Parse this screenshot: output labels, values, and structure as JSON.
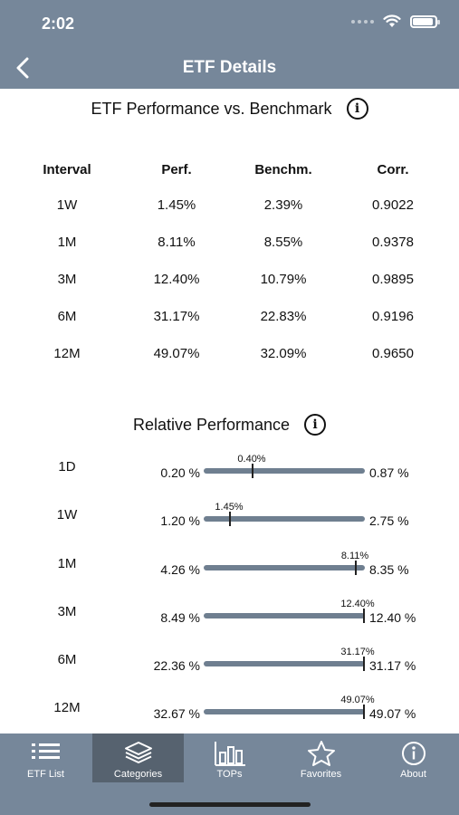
{
  "status_bar": {
    "time": "2:02"
  },
  "nav": {
    "title": "ETF Details"
  },
  "performance": {
    "title": "ETF Performance vs. Benchmark",
    "headers": {
      "interval": "Interval",
      "perf": "Perf.",
      "bench": "Benchm.",
      "corr": "Corr."
    },
    "rows": [
      {
        "interval": "1W",
        "perf": "1.45%",
        "bench": "2.39%",
        "corr": "0.9022"
      },
      {
        "interval": "1M",
        "perf": "8.11%",
        "bench": "8.55%",
        "corr": "0.9378"
      },
      {
        "interval": "3M",
        "perf": "12.40%",
        "bench": "10.79%",
        "corr": "0.9895"
      },
      {
        "interval": "6M",
        "perf": "31.17%",
        "bench": "22.83%",
        "corr": "0.9196"
      },
      {
        "interval": "12M",
        "perf": "49.07%",
        "bench": "32.09%",
        "corr": "0.9650"
      }
    ]
  },
  "relative": {
    "title": "Relative Performance",
    "rows": [
      {
        "interval": "1D",
        "min": "0.20 %",
        "max": "0.87 %",
        "value": "0.40%",
        "fraction": 0.3
      },
      {
        "interval": "1W",
        "min": "1.20 %",
        "max": "2.75 %",
        "value": "1.45%",
        "fraction": 0.16
      },
      {
        "interval": "1M",
        "min": "4.26 %",
        "max": "8.35 %",
        "value": "8.11%",
        "fraction": 0.94
      },
      {
        "interval": "3M",
        "min": "8.49 %",
        "max": "12.40 %",
        "value": "12.40%",
        "fraction": 1.0
      },
      {
        "interval": "6M",
        "min": "22.36 %",
        "max": "31.17 %",
        "value": "31.17%",
        "fraction": 1.0
      },
      {
        "interval": "12M",
        "min": "32.67 %",
        "max": "49.07 %",
        "value": "49.07%",
        "fraction": 1.0
      }
    ]
  },
  "tabbar": {
    "tabs": [
      {
        "label": "ETF List",
        "icon": "list-icon",
        "active": false
      },
      {
        "label": "Categories",
        "icon": "layers-icon",
        "active": true
      },
      {
        "label": "TOPs",
        "icon": "bar-chart-icon",
        "active": false
      },
      {
        "label": "Favorites",
        "icon": "star-icon",
        "active": false
      },
      {
        "label": "About",
        "icon": "info-icon",
        "active": false
      }
    ]
  },
  "colors": {
    "header_bg": "#76879a",
    "active_tab_bg": "#56626f",
    "bar": "#6f7f90"
  }
}
